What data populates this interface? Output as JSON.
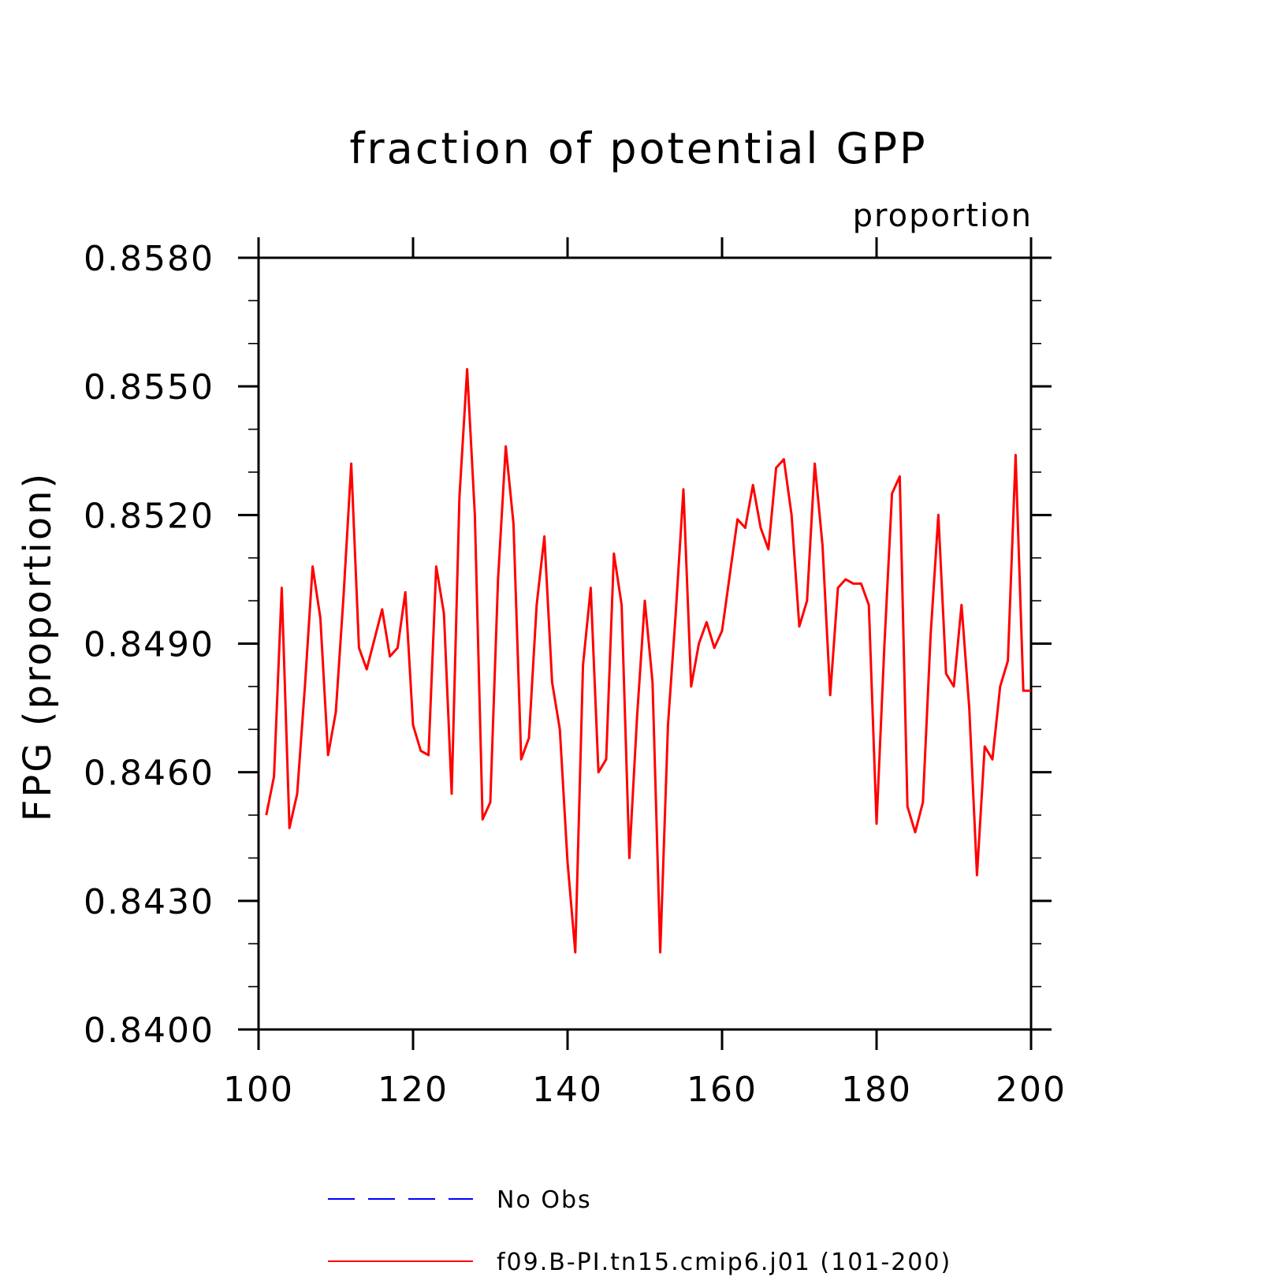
{
  "chart_data": {
    "type": "line",
    "title": "fraction of potential GPP",
    "units": "proportion",
    "ylabel": "FPG  (proportion)",
    "xlabel": "",
    "xlim": [
      100,
      200
    ],
    "ylim": [
      0.84,
      0.858
    ],
    "xticks": [
      100,
      120,
      140,
      160,
      180,
      200
    ],
    "xtick_labels": [
      "100",
      "120",
      "140",
      "160",
      "180",
      "200"
    ],
    "yticks": [
      0.84,
      0.843,
      0.846,
      0.849,
      0.852,
      0.855,
      0.858
    ],
    "ytick_labels": [
      "0.8400",
      "0.8430",
      "0.8460",
      "0.8490",
      "0.8520",
      "0.8550",
      "0.8580"
    ],
    "grid": false,
    "legend_position": "bottom",
    "series": [
      {
        "name": "f09.B-PI.tn15.cmip6.j01 (101-200)",
        "color": "#ff0000",
        "style": "solid",
        "x": [
          101,
          102,
          103,
          104,
          105,
          106,
          107,
          108,
          109,
          110,
          111,
          112,
          113,
          114,
          115,
          116,
          117,
          118,
          119,
          120,
          121,
          122,
          123,
          124,
          125,
          126,
          127,
          128,
          129,
          130,
          131,
          132,
          133,
          134,
          135,
          136,
          137,
          138,
          139,
          140,
          141,
          142,
          143,
          144,
          145,
          146,
          147,
          148,
          149,
          150,
          151,
          152,
          153,
          154,
          155,
          156,
          157,
          158,
          159,
          160,
          161,
          162,
          163,
          164,
          165,
          166,
          167,
          168,
          169,
          170,
          171,
          172,
          173,
          174,
          175,
          176,
          177,
          178,
          179,
          180,
          181,
          182,
          183,
          184,
          185,
          186,
          187,
          188,
          189,
          190,
          191,
          192,
          193,
          194,
          195,
          196,
          197,
          198,
          199,
          200
        ],
        "y": [
          0.845,
          0.8459,
          0.8503,
          0.8447,
          0.8455,
          0.848,
          0.8508,
          0.8496,
          0.8464,
          0.8474,
          0.8501,
          0.8532,
          0.8489,
          0.8484,
          0.8491,
          0.8498,
          0.8487,
          0.8489,
          0.8502,
          0.8471,
          0.8465,
          0.8464,
          0.8508,
          0.8497,
          0.8455,
          0.8524,
          0.8554,
          0.852,
          0.8449,
          0.8453,
          0.8505,
          0.8536,
          0.8518,
          0.8463,
          0.8468,
          0.8499,
          0.8515,
          0.8481,
          0.847,
          0.8439,
          0.8418,
          0.8485,
          0.8503,
          0.846,
          0.8463,
          0.8511,
          0.8499,
          0.844,
          0.8473,
          0.85,
          0.8481,
          0.8418,
          0.8471,
          0.8497,
          0.8526,
          0.848,
          0.849,
          0.8495,
          0.8489,
          0.8493,
          0.8506,
          0.8519,
          0.8517,
          0.8527,
          0.8517,
          0.8512,
          0.8531,
          0.8533,
          0.852,
          0.8494,
          0.85,
          0.8532,
          0.8513,
          0.8478,
          0.8503,
          0.8505,
          0.8504,
          0.8504,
          0.8499,
          0.8448,
          0.8489,
          0.8525,
          0.8529,
          0.8452,
          0.8446,
          0.8453,
          0.8492,
          0.852,
          0.8483,
          0.848,
          0.8499,
          0.8475,
          0.8436,
          0.8466,
          0.8463,
          0.848,
          0.8486,
          0.8534,
          0.8479,
          0.8479
        ]
      }
    ],
    "legend": [
      {
        "label": "No Obs",
        "color": "#0000ff",
        "style": "dashed"
      },
      {
        "label": "f09.B-PI.tn15.cmip6.j01 (101-200)",
        "color": "#ff0000",
        "style": "solid"
      }
    ]
  }
}
